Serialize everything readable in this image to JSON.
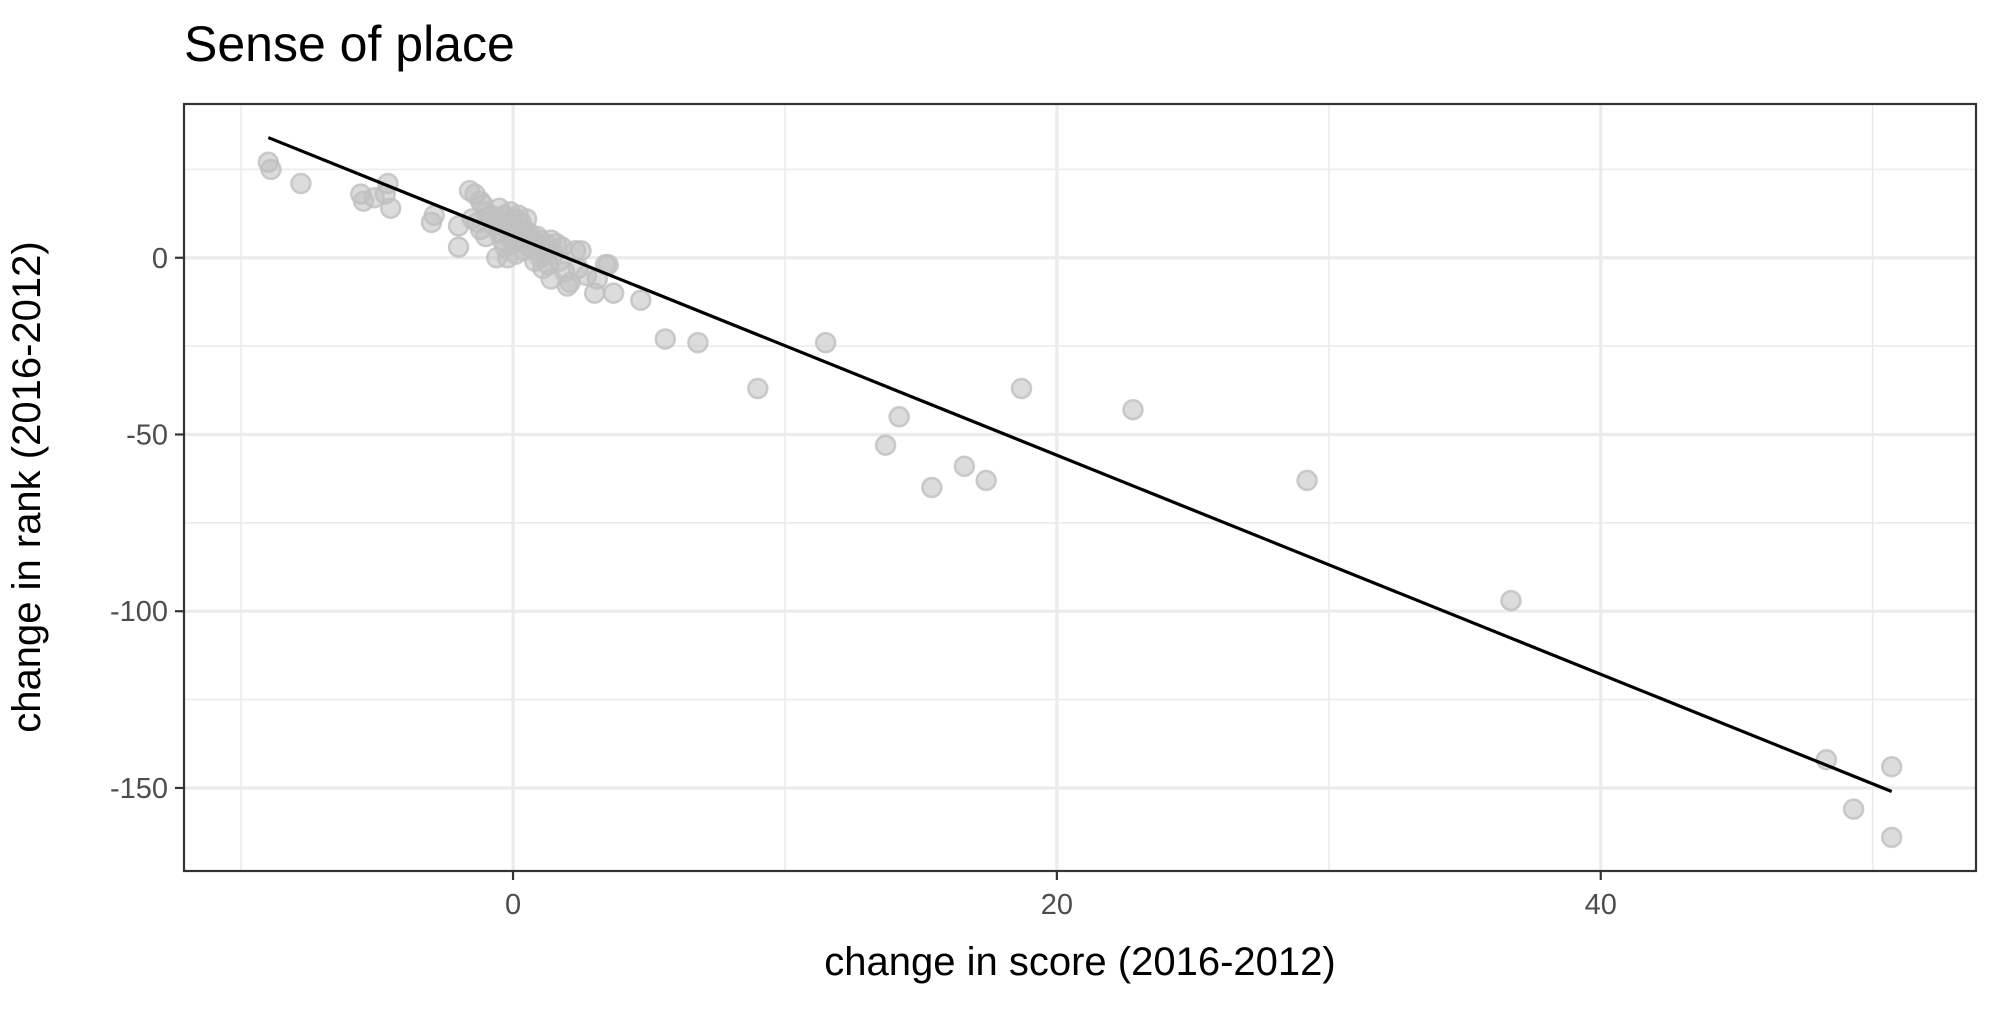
{
  "chart_data": {
    "type": "scatter",
    "title": "Sense of place",
    "xlabel": "change in score (2016-2012)",
    "ylabel": "change in rank (2016-2012)",
    "xlim": [
      -12.1,
      53.8
    ],
    "ylim": [
      -173.5,
      43.5
    ],
    "x_ticks": [
      0,
      20,
      40
    ],
    "y_ticks": [
      0,
      -50,
      -100,
      -150
    ],
    "x_tick_labels": [
      "0",
      "20",
      "40"
    ],
    "y_tick_labels": [
      "0",
      "-50",
      "-100",
      "-150"
    ],
    "grid": true,
    "point_color": "#bfbfbf",
    "line_color": "#000000",
    "fit_line": {
      "x": [
        -9.0,
        50.7
      ],
      "y": [
        34,
        -151
      ]
    },
    "points": [
      {
        "x": -9.0,
        "y": 27
      },
      {
        "x": -8.9,
        "y": 25
      },
      {
        "x": -7.8,
        "y": 21
      },
      {
        "x": -5.6,
        "y": 18
      },
      {
        "x": -5.5,
        "y": 16
      },
      {
        "x": -5.1,
        "y": 17
      },
      {
        "x": -4.7,
        "y": 18
      },
      {
        "x": -4.5,
        "y": 14
      },
      {
        "x": -4.6,
        "y": 21
      },
      {
        "x": -3.0,
        "y": 10
      },
      {
        "x": -2.9,
        "y": 12
      },
      {
        "x": -2.0,
        "y": 3
      },
      {
        "x": -2.0,
        "y": 9
      },
      {
        "x": -1.6,
        "y": 19
      },
      {
        "x": -1.4,
        "y": 18
      },
      {
        "x": -1.2,
        "y": 16
      },
      {
        "x": -1.1,
        "y": 15
      },
      {
        "x": -1.5,
        "y": 11
      },
      {
        "x": -1.3,
        "y": 10
      },
      {
        "x": -1.0,
        "y": 13
      },
      {
        "x": -1.2,
        "y": 8
      },
      {
        "x": -1.0,
        "y": 6
      },
      {
        "x": -0.8,
        "y": 12
      },
      {
        "x": -0.7,
        "y": 9
      },
      {
        "x": -0.6,
        "y": 11
      },
      {
        "x": -0.5,
        "y": 14
      },
      {
        "x": -0.5,
        "y": 7
      },
      {
        "x": -0.4,
        "y": 5
      },
      {
        "x": -0.6,
        "y": 0
      },
      {
        "x": -0.4,
        "y": 10
      },
      {
        "x": -0.3,
        "y": 12
      },
      {
        "x": -0.3,
        "y": 3
      },
      {
        "x": -0.2,
        "y": 8
      },
      {
        "x": -0.1,
        "y": 13
      },
      {
        "x": -0.1,
        "y": 6
      },
      {
        "x": -0.2,
        "y": 0
      },
      {
        "x": 0.0,
        "y": 11
      },
      {
        "x": 0.0,
        "y": 4
      },
      {
        "x": 0.1,
        "y": 9
      },
      {
        "x": 0.1,
        "y": 1
      },
      {
        "x": 0.2,
        "y": 12
      },
      {
        "x": 0.2,
        "y": 7
      },
      {
        "x": 0.3,
        "y": 5
      },
      {
        "x": 0.3,
        "y": 10
      },
      {
        "x": 0.4,
        "y": 8
      },
      {
        "x": 0.4,
        "y": 2
      },
      {
        "x": 0.5,
        "y": 6
      },
      {
        "x": 0.5,
        "y": 11
      },
      {
        "x": 0.6,
        "y": 3
      },
      {
        "x": 0.6,
        "y": 7
      },
      {
        "x": 0.7,
        "y": 5
      },
      {
        "x": 0.8,
        "y": -1
      },
      {
        "x": 0.8,
        "y": 4
      },
      {
        "x": 0.9,
        "y": 2
      },
      {
        "x": 0.9,
        "y": 6
      },
      {
        "x": 1.0,
        "y": 0
      },
      {
        "x": 1.0,
        "y": 5
      },
      {
        "x": 1.1,
        "y": 3
      },
      {
        "x": 1.1,
        "y": -3
      },
      {
        "x": 1.2,
        "y": 4
      },
      {
        "x": 1.3,
        "y": -2
      },
      {
        "x": 1.3,
        "y": 2
      },
      {
        "x": 1.4,
        "y": 5
      },
      {
        "x": 1.4,
        "y": -6
      },
      {
        "x": 1.5,
        "y": 1
      },
      {
        "x": 1.6,
        "y": 4
      },
      {
        "x": 1.7,
        "y": -1
      },
      {
        "x": 1.8,
        "y": 3
      },
      {
        "x": 1.9,
        "y": -4
      },
      {
        "x": 2.0,
        "y": -8
      },
      {
        "x": 2.1,
        "y": -7
      },
      {
        "x": 2.3,
        "y": 2
      },
      {
        "x": 2.4,
        "y": -3
      },
      {
        "x": 2.5,
        "y": 2
      },
      {
        "x": 2.7,
        "y": -5
      },
      {
        "x": 3.0,
        "y": -10
      },
      {
        "x": 3.1,
        "y": -6
      },
      {
        "x": 3.4,
        "y": -2
      },
      {
        "x": 3.5,
        "y": -2
      },
      {
        "x": 3.7,
        "y": -10
      },
      {
        "x": 4.7,
        "y": -12
      },
      {
        "x": 5.6,
        "y": -23
      },
      {
        "x": 6.8,
        "y": -24
      },
      {
        "x": 9.0,
        "y": -37
      },
      {
        "x": 11.5,
        "y": -24
      },
      {
        "x": 13.7,
        "y": -53
      },
      {
        "x": 14.2,
        "y": -45
      },
      {
        "x": 15.4,
        "y": -65
      },
      {
        "x": 16.6,
        "y": -59
      },
      {
        "x": 17.4,
        "y": -63
      },
      {
        "x": 18.7,
        "y": -37
      },
      {
        "x": 22.8,
        "y": -43
      },
      {
        "x": 29.2,
        "y": -63
      },
      {
        "x": 36.7,
        "y": -97
      },
      {
        "x": 48.3,
        "y": -142
      },
      {
        "x": 49.3,
        "y": -156
      },
      {
        "x": 50.7,
        "y": -144
      },
      {
        "x": 50.7,
        "y": -164
      }
    ]
  }
}
